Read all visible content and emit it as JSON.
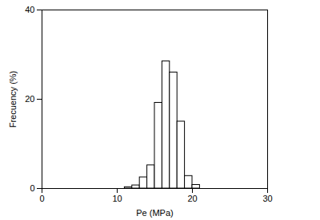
{
  "chart_data": {
    "type": "histogram",
    "x_label": "Pe (MPa)",
    "y_label": "Frecuency (%)",
    "bins": [
      11,
      12,
      13,
      14,
      15,
      16,
      17,
      18,
      19,
      20,
      21
    ],
    "values": [
      0.3,
      0.7,
      2.5,
      5.2,
      19.2,
      28.5,
      26,
      15,
      2.8,
      0.8
    ],
    "color": "#ffffff",
    "xlim": [
      0,
      30
    ],
    "xticks": [
      0,
      10,
      20,
      30
    ],
    "ylim": [
      0,
      40
    ],
    "yticks": [
      0,
      20,
      40
    ],
    "grid": false
  }
}
